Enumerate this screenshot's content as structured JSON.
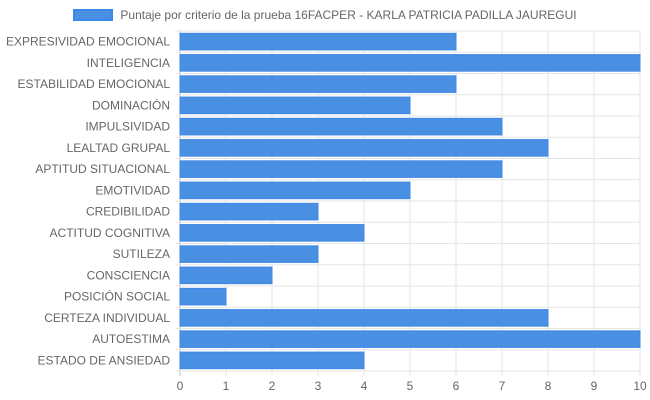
{
  "colors": {
    "bar": "#4A90E2",
    "bar_border": "#3D87E8",
    "grid": "#E5E5E5",
    "axis_line": "#BDBDBD",
    "text": "#666666"
  },
  "chart_data": {
    "type": "bar",
    "orientation": "horizontal",
    "legend": {
      "label": "Puntaje por criterio de la prueba 16FACPER - KARLA PATRICIA PADILLA JAUREGUI",
      "position": "top"
    },
    "categories": [
      "EXPRESIVIDAD EMOCIONAL",
      "INTELIGENCIA",
      "ESTABILIDAD EMOCIONAL",
      "DOMINACIÓN",
      "IMPULSIVIDAD",
      "LEALTAD GRUPAL",
      "APTITUD SITUACIONAL",
      "EMOTIVIDAD",
      "CREDIBILIDAD",
      "ACTITUD COGNITIVA",
      "SUTILEZA",
      "CONSCIENCIA",
      "POSICIÓN SOCIAL",
      "CERTEZA INDIVIDUAL",
      "AUTOESTIMA",
      "ESTADO DE ANSIEDAD"
    ],
    "values": [
      6,
      10,
      6,
      5,
      7,
      8,
      7,
      5,
      3,
      4,
      3,
      2,
      1,
      8,
      10,
      4
    ],
    "x_ticks": [
      "0",
      "1",
      "2",
      "3",
      "4",
      "5",
      "6",
      "7",
      "8",
      "9",
      "10"
    ],
    "xlim": [
      0,
      10
    ],
    "grid": true
  }
}
